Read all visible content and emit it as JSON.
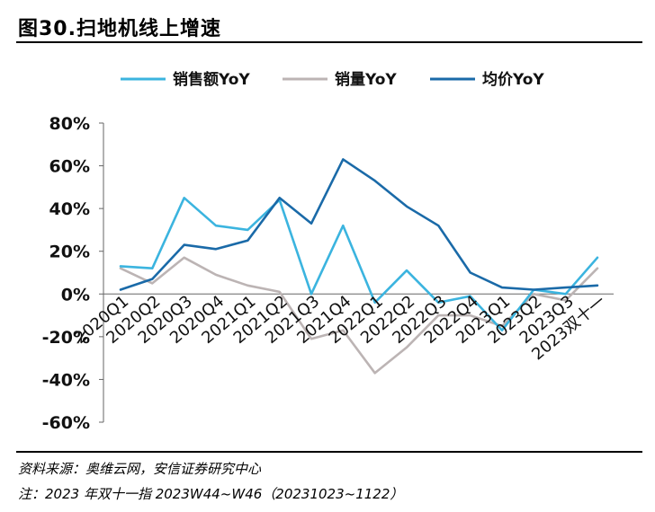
{
  "title": "图30.扫地机线上增速",
  "footer": {
    "source": "资料来源：奥维云网，安信证券研究中心",
    "note": "注：2023 年双十一指 2023W44~W46（20231023~1122）"
  },
  "chart_data": {
    "type": "line",
    "categories": [
      "2020Q1",
      "2020Q2",
      "2020Q3",
      "2020Q4",
      "2021Q1",
      "2021Q2",
      "2021Q3",
      "2021Q4",
      "2022Q1",
      "2022Q2",
      "2022Q3",
      "2022Q4",
      "2023Q1",
      "2023Q2",
      "2023Q3",
      "2023双十一"
    ],
    "series": [
      {
        "name": "销售额YoY",
        "color": "#3bb4df",
        "values": [
          13,
          12,
          45,
          32,
          30,
          44,
          0,
          32,
          -4,
          11,
          -4,
          -1,
          -17,
          2,
          0,
          17
        ]
      },
      {
        "name": "销量YoY",
        "color": "#bcb4b4",
        "values": [
          12,
          5,
          17,
          9,
          4,
          1,
          -21,
          -17,
          -37,
          -25,
          -10,
          -10,
          -15,
          0,
          -3,
          12
        ]
      },
      {
        "name": "均价YoY",
        "color": "#1a6aa8",
        "values": [
          2,
          7,
          23,
          21,
          25,
          45,
          33,
          63,
          53,
          41,
          32,
          10,
          3,
          2,
          3,
          4
        ]
      }
    ],
    "yticks": [
      "80%",
      "60%",
      "40%",
      "20%",
      "0%",
      "-20%",
      "-40%",
      "-60%"
    ],
    "ylim": [
      -60,
      80
    ],
    "ystep": 20,
    "legend_position": "top",
    "grid": false
  }
}
